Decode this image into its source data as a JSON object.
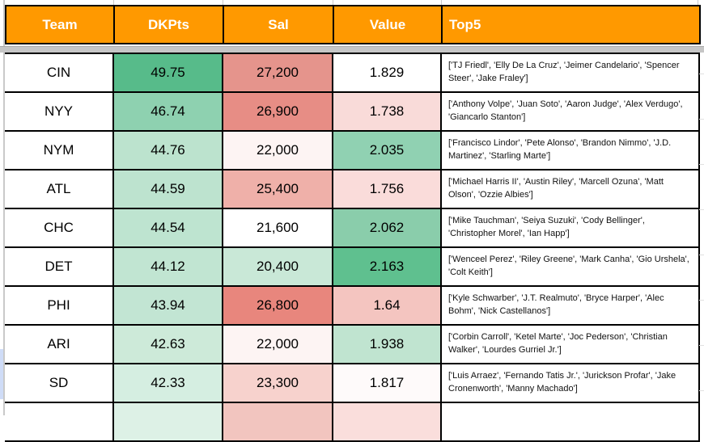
{
  "header": {
    "columns": [
      "Team",
      "DKPts",
      "Sal",
      "Value",
      "Top5"
    ],
    "bg": "#ff9900",
    "text_color": "#ffffff"
  },
  "rows": [
    {
      "team": "CIN",
      "dkpts": "49.75",
      "sal": "27,200",
      "value": "1.829",
      "top5": "['TJ Friedl', 'Elly De La Cruz', 'Jeimer Candelario', 'Spencer Steer', 'Jake Fraley']",
      "bg": {
        "team": "#ffffff",
        "dkpts": "#57bb8a",
        "sal": "#e5948c",
        "value": "#ffffff",
        "top5": "#ffffff"
      }
    },
    {
      "team": "NYY",
      "dkpts": "46.74",
      "sal": "26,900",
      "value": "1.738",
      "top5": "['Anthony Volpe', 'Juan Soto', 'Aaron Judge', 'Alex Verdugo', 'Giancarlo Stanton']",
      "bg": {
        "team": "#ffffff",
        "dkpts": "#8ed1b0",
        "sal": "#e78d85",
        "value": "#f9dbd9",
        "top5": "#ffffff"
      }
    },
    {
      "team": "NYM",
      "dkpts": "44.76",
      "sal": "22,000",
      "value": "2.035",
      "top5": "['Francisco Lindor', 'Pete Alonso', 'Brandon Nimmo', 'J.D. Martinez', 'Starling Marte']",
      "bg": {
        "team": "#ffffff",
        "dkpts": "#bce3ce",
        "sal": "#fdf4f3",
        "value": "#90d1b2",
        "top5": "#ffffff"
      }
    },
    {
      "team": "ATL",
      "dkpts": "44.59",
      "sal": "25,400",
      "value": "1.756",
      "top5": "['Michael Harris II', 'Austin Riley', 'Marcell Ozuna', 'Matt Olson', 'Ozzie Albies']",
      "bg": {
        "team": "#ffffff",
        "dkpts": "#bde3cf",
        "sal": "#efb0a9",
        "value": "#fadcda",
        "top5": "#ffffff"
      }
    },
    {
      "team": "CHC",
      "dkpts": "44.54",
      "sal": "21,600",
      "value": "2.062",
      "top5": "['Mike Tauchman', 'Seiya Suzuki', 'Cody Bellinger', 'Christopher Morel', 'Ian Happ']",
      "bg": {
        "team": "#ffffff",
        "dkpts": "#bee4d0",
        "sal": "#ffffff",
        "value": "#8acdab",
        "top5": "#ffffff"
      }
    },
    {
      "team": "DET",
      "dkpts": "44.12",
      "sal": "20,400",
      "value": "2.163",
      "top5": "['Wenceel Perez', 'Riley Greene', 'Mark Canha', 'Gio Urshela', 'Colt Keith']",
      "bg": {
        "team": "#ffffff",
        "dkpts": "#c1e5d2",
        "sal": "#c9e8d7",
        "value": "#5fc08f",
        "top5": "#ffffff"
      }
    },
    {
      "team": "PHI",
      "dkpts": "43.94",
      "sal": "26,800",
      "value": "1.64",
      "top5": "['Kyle Schwarber', 'J.T. Realmuto', 'Bryce Harper', 'Alec Bohm', 'Nick Castellanos']",
      "bg": {
        "team": "#ffffff",
        "dkpts": "#c2e5d3",
        "sal": "#e8867d",
        "value": "#f4c5c0",
        "top5": "#ffffff"
      }
    },
    {
      "team": "ARI",
      "dkpts": "42.63",
      "sal": "22,000",
      "value": "1.938",
      "top5": "['Corbin Carroll', 'Ketel Marte', 'Joc Pederson', 'Christian Walker', 'Lourdes Gurriel Jr.']",
      "bg": {
        "team": "#ffffff",
        "dkpts": "#cdead9",
        "sal": "#fdf4f3",
        "value": "#c0e4d0",
        "top5": "#ffffff"
      }
    },
    {
      "team": "SD",
      "dkpts": "42.33",
      "sal": "23,300",
      "value": "1.817",
      "top5": "['Luis Arraez', 'Fernando Tatis Jr.', 'Jurickson Profar', 'Jake Cronenworth', 'Manny Machado']",
      "bg": {
        "team": "#ffffff",
        "dkpts": "#d5eee1",
        "sal": "#f7d2cd",
        "value": "#fefafa",
        "top5": "#ffffff"
      }
    },
    {
      "team": "",
      "dkpts": "",
      "sal": "",
      "value": "",
      "top5": "",
      "bg": {
        "team": "#ffffff",
        "dkpts": "#ddf1e6",
        "sal": "#f2c5bf",
        "value": "#fadedc",
        "top5": "#ffffff"
      }
    }
  ],
  "chrome": {
    "divider_band_color": "#c6c6c6",
    "gridline_color": "#c9c9c9",
    "selected_row_strip_color": "#cfdcf7"
  }
}
